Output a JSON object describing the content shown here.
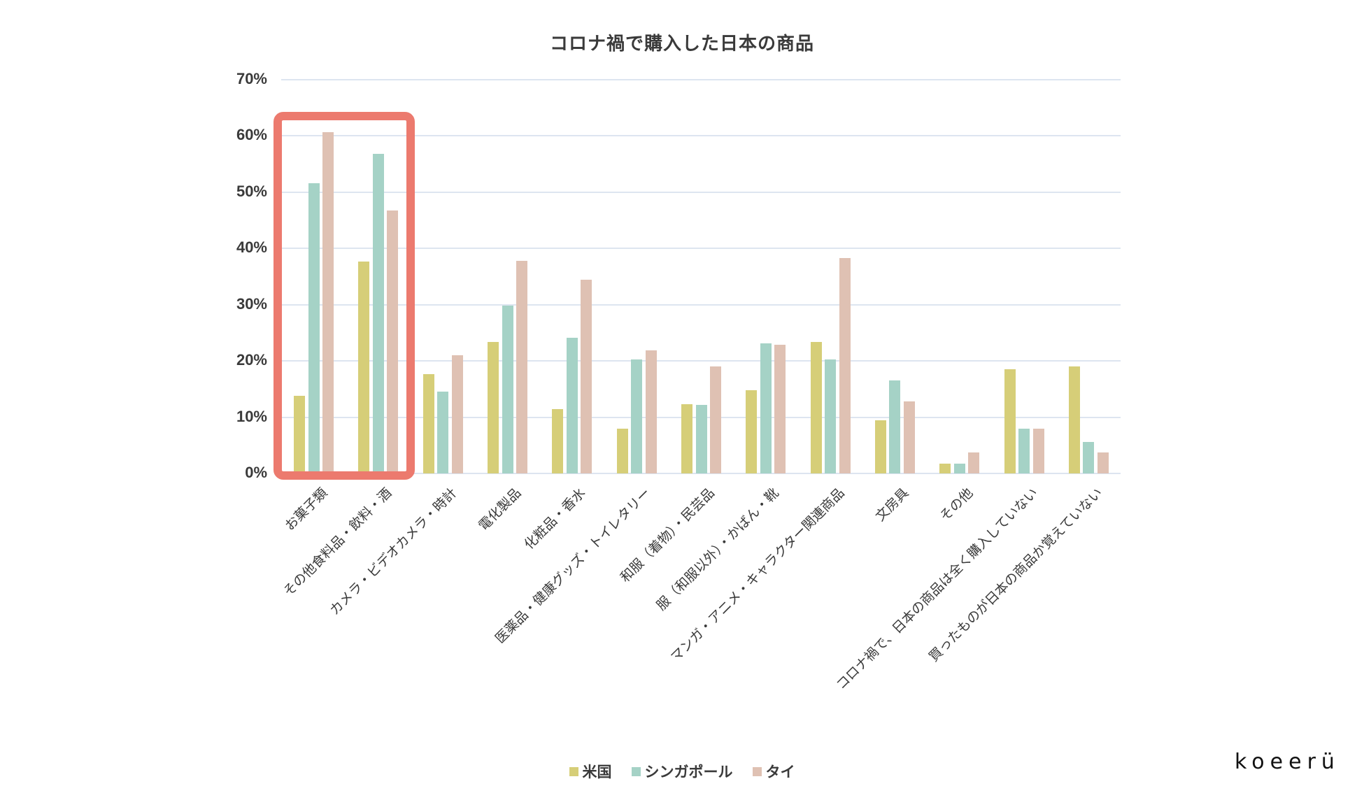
{
  "title": "コロナ禍で購入した日本の商品",
  "logo": "koeerü",
  "colors": {
    "us": "#d6ce78",
    "sg": "#a5d2c6",
    "th": "#dfc1b3",
    "highlight": "#ec7a6e",
    "grid": "#dde5f0"
  },
  "y_ticks": [
    "70%",
    "60%",
    "50%",
    "40%",
    "30%",
    "20%",
    "10%",
    "0%"
  ],
  "legend": [
    {
      "label": "米国",
      "color": "#d6ce78"
    },
    {
      "label": "シンガポール",
      "color": "#a5d2c6"
    },
    {
      "label": "タイ",
      "color": "#dfc1b3"
    }
  ],
  "chart_data": {
    "type": "bar",
    "title": "コロナ禍で購入した日本の商品",
    "xlabel": "",
    "ylabel": "",
    "ylim": [
      0,
      70
    ],
    "y_unit": "%",
    "grid": true,
    "legend_position": "bottom",
    "categories": [
      "お菓子類",
      "その他食料品・飲料・酒",
      "カメラ・ビデオカメラ・時計",
      "電化製品",
      "化粧品・香水",
      "医薬品・健康グッズ・トイレタリー",
      "和服（着物）・民芸品",
      "服（和服以外）・かばん・靴",
      "マンガ・アニメ・キャラクター関連商品",
      "文房具",
      "その他",
      "コロナ禍で、日本の商品は全く購入していない",
      "買ったものが日本の商品か覚えていない"
    ],
    "series": [
      {
        "name": "米国",
        "values": [
          13.8,
          37.7,
          17.6,
          23.4,
          11.5,
          8.0,
          12.3,
          14.8,
          23.4,
          9.5,
          1.8,
          18.5,
          19.0
        ]
      },
      {
        "name": "シンガポール",
        "values": [
          51.6,
          56.8,
          14.6,
          29.8,
          24.1,
          20.3,
          12.2,
          23.1,
          20.3,
          16.6,
          1.8,
          8.0,
          5.6
        ]
      },
      {
        "name": "タイ",
        "values": [
          60.7,
          46.8,
          21.0,
          37.8,
          34.4,
          21.9,
          19.0,
          22.9,
          38.3,
          12.8,
          3.7,
          8.0,
          3.7
        ]
      }
    ],
    "annotations": [
      {
        "type": "highlight-box",
        "covers_categories": [
          "お菓子類",
          "その他食料品・飲料・酒"
        ]
      }
    ]
  }
}
